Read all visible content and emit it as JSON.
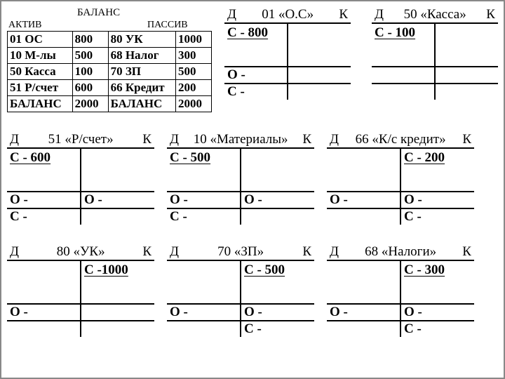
{
  "balance": {
    "title": "БАЛАНС",
    "aktiv": "АКТИВ",
    "passiv": "ПАССИВ",
    "rows": [
      {
        "a_acc": "01 ОС",
        "a_val": "800",
        "p_acc": "80 УК",
        "p_val": "1000"
      },
      {
        "a_acc": "10 М-лы",
        "a_val": "500",
        "p_acc": "68 Налог",
        "p_val": "300"
      },
      {
        "a_acc": "50 Касса",
        "a_val": "100",
        "p_acc": "70 ЗП",
        "p_val": "500"
      },
      {
        "a_acc": "51 Р/счет",
        "a_val": "600",
        "p_acc": "66 Кредит",
        "p_val": "200"
      }
    ],
    "total_label": "БАЛАНС",
    "a_total": "2000",
    "p_total": "2000"
  },
  "accounts_top": [
    {
      "d": "Д",
      "k": "К",
      "name": "01 «О.С»",
      "s_left": "С - 800",
      "s_right": "",
      "ob_l": "О -",
      "ob_r": "",
      "foot_l": "С -",
      "foot_r": ""
    },
    {
      "d": "Д",
      "k": "К",
      "name": "50 «Касса»",
      "s_left": "С - 100",
      "s_right": "",
      "ob_l": "",
      "ob_r": "",
      "foot_l": "",
      "foot_r": ""
    }
  ],
  "accounts_mid": [
    {
      "d": "Д",
      "k": "К",
      "name": "51 «Р/счет»",
      "s_left": "С - 600",
      "s_right": "",
      "ob_l": "О -",
      "ob_r": "О -",
      "foot_l": "С -",
      "foot_r": ""
    },
    {
      "d": "Д",
      "k": "К",
      "name": "10 «Материалы»",
      "s_left": "С - 500",
      "s_right": "",
      "ob_l": "О -",
      "ob_r": "О -",
      "foot_l": "С -",
      "foot_r": ""
    },
    {
      "d": "Д",
      "k": "К",
      "name": "66 «К/с кредит»",
      "s_left": "",
      "s_right": "С - 200",
      "ob_l": "О -",
      "ob_r": "О -",
      "foot_l": "",
      "foot_r": "С -"
    }
  ],
  "accounts_bot": [
    {
      "d": "Д",
      "k": "К",
      "name": "80 «УК»",
      "s_left": "",
      "s_right": "С -1000",
      "ob_l": "О -",
      "ob_r": "",
      "foot_l": "",
      "foot_r": ""
    },
    {
      "d": "Д",
      "k": "К",
      "name": "70  «ЗП»",
      "s_left": "",
      "s_right": "С - 500",
      "ob_l": "О -",
      "ob_r": "О -",
      "foot_l": "",
      "foot_r": "С -"
    },
    {
      "d": "Д",
      "k": "К",
      "name": "68 «Налоги»",
      "s_left": "",
      "s_right": "С - 300",
      "ob_l": "О -",
      "ob_r": "О -",
      "foot_l": "",
      "foot_r": "С -"
    }
  ]
}
